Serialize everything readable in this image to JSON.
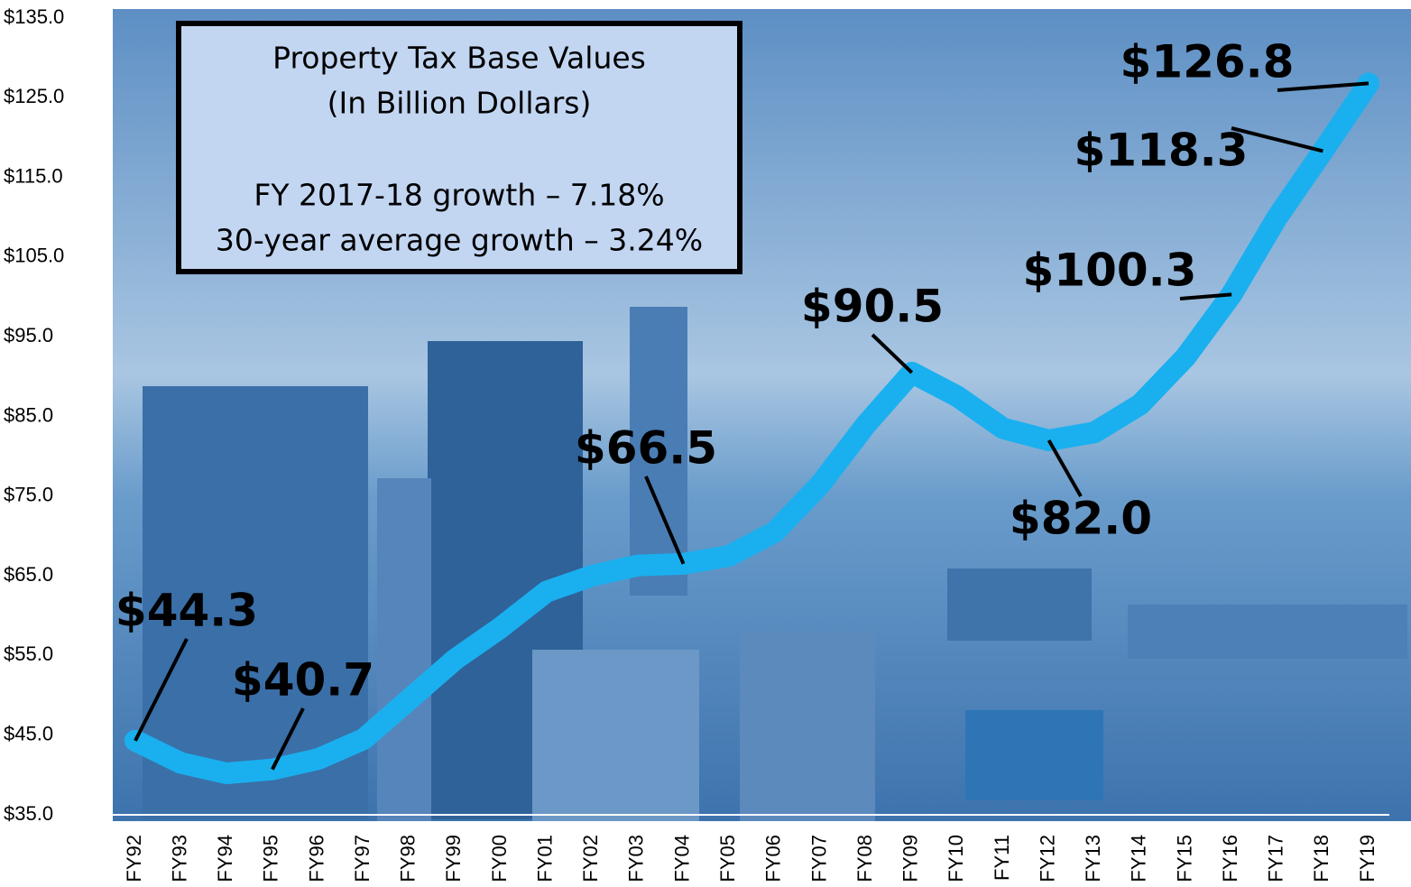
{
  "chart_data": {
    "type": "line",
    "title": "Property Tax Base Values",
    "subtitle": "(In Billion Dollars)",
    "annotations": [
      "FY 2017-18 growth – 7.18%",
      "30-year average growth – 3.24%"
    ],
    "categories": [
      "FY92",
      "FY93",
      "FY94",
      "FY95",
      "FY96",
      "FY97",
      "FY98",
      "FY99",
      "FY00",
      "FY01",
      "FY02",
      "FY03",
      "FY04",
      "FY05",
      "FY06",
      "FY07",
      "FY08",
      "FY09",
      "FY10",
      "FY11",
      "FY12",
      "FY13",
      "FY14",
      "FY15",
      "FY16",
      "FY17",
      "FY18",
      "FY19"
    ],
    "series": [
      {
        "name": "Property Tax Base Values",
        "color": "#1ab0ef",
        "values": [
          44.3,
          41.5,
          40.2,
          40.7,
          42.0,
          44.5,
          49.5,
          54.5,
          58.5,
          63.0,
          65.0,
          66.3,
          66.5,
          67.5,
          70.5,
          76.5,
          84.0,
          90.5,
          87.5,
          83.5,
          82.0,
          83.0,
          86.5,
          92.5,
          100.3,
          110.0,
          118.3,
          126.8
        ],
        "value_labels": [
          "$44.3",
          null,
          null,
          "$40.7",
          null,
          null,
          null,
          null,
          null,
          null,
          null,
          null,
          "$66.5",
          null,
          null,
          null,
          null,
          "$90.5",
          null,
          null,
          "$82.0",
          null,
          null,
          null,
          "$100.3",
          null,
          "$118.3",
          "$126.8"
        ]
      }
    ],
    "ylim": [
      35,
      135
    ],
    "yticks": [
      {
        "value": 35,
        "label": "$35.0"
      },
      {
        "value": 45,
        "label": "$45.0"
      },
      {
        "value": 55,
        "label": "$55.0"
      },
      {
        "value": 65,
        "label": "$65.0"
      },
      {
        "value": 75,
        "label": "$75.0"
      },
      {
        "value": 85,
        "label": "$85.0"
      },
      {
        "value": 95,
        "label": "$95.0"
      },
      {
        "value": 105,
        "label": "$105.0"
      },
      {
        "value": 115,
        "label": "$115.0"
      },
      {
        "value": 125,
        "label": "$125.0"
      },
      {
        "value": 135,
        "label": "$135.0"
      }
    ]
  }
}
